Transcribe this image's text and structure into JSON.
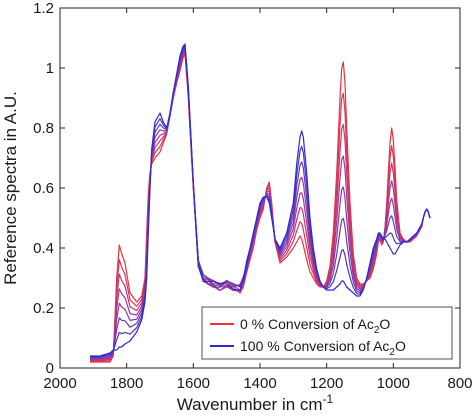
{
  "chart_data": {
    "type": "line",
    "xlabel_main": "Wavenumber  in  cm",
    "xlabel_sup": "-1",
    "ylabel": "Reference spectra  in  A.U.",
    "xlim": [
      2000,
      800
    ],
    "x_reversed": true,
    "ylim": [
      0,
      1.2
    ],
    "xticks": [
      2000,
      1800,
      1600,
      1400,
      1200,
      1000,
      800
    ],
    "yticks": [
      0,
      0.2,
      0.4,
      0.6,
      0.8,
      1,
      1.2
    ],
    "ytick_labels": [
      "0",
      "0.2",
      "0.4",
      "0.6",
      "0.8",
      "1",
      "1.2"
    ],
    "grid": false,
    "legend_position": "bottom-right",
    "legend": [
      {
        "prefix": "0 % Conversion of Ac",
        "sub": "2",
        "suffix": "O",
        "color": "#e8323c"
      },
      {
        "prefix": "100 % Conversion of Ac",
        "sub": "2",
        "suffix": "O",
        "color": "#2a2ad0"
      }
    ],
    "series_colors": [
      "#e8323c",
      "#d9345a",
      "#c23773",
      "#a8388c",
      "#8c3aa2",
      "#6b38b8",
      "#4a34c6",
      "#2a2ad0"
    ],
    "conversion_levels": [
      0,
      0.143,
      0.286,
      0.429,
      0.571,
      0.714,
      0.857,
      1
    ],
    "spectrum_start": {
      "x": [
        1910,
        1880,
        1850,
        1840,
        1830,
        1822,
        1815,
        1805,
        1790,
        1770,
        1755,
        1745,
        1740,
        1735,
        1730,
        1725,
        1715,
        1700,
        1690,
        1680,
        1670,
        1660,
        1650,
        1640,
        1632,
        1625,
        1615,
        1600,
        1585,
        1570,
        1555,
        1540,
        1520,
        1500,
        1480,
        1460,
        1450,
        1440,
        1430,
        1420,
        1410,
        1400,
        1390,
        1380,
        1372,
        1365,
        1355,
        1340,
        1320,
        1300,
        1290,
        1280,
        1275,
        1270,
        1260,
        1250,
        1240,
        1230,
        1220,
        1210,
        1200,
        1190,
        1180,
        1170,
        1160,
        1155,
        1150,
        1145,
        1140,
        1130,
        1120,
        1110,
        1100,
        1090,
        1080,
        1070,
        1060,
        1050,
        1045,
        1040,
        1035,
        1030,
        1025,
        1020,
        1015,
        1010,
        1005,
        1000,
        995,
        990,
        980,
        970,
        960,
        950,
        940,
        930,
        920,
        915,
        910,
        905,
        900,
        895,
        890
      ],
      "y": [
        0.02,
        0.02,
        0.02,
        0.04,
        0.3,
        0.41,
        0.38,
        0.35,
        0.25,
        0.22,
        0.24,
        0.3,
        0.45,
        0.58,
        0.65,
        0.68,
        0.7,
        0.72,
        0.75,
        0.78,
        0.84,
        0.9,
        0.95,
        0.99,
        1.03,
        1.05,
        0.9,
        0.6,
        0.35,
        0.3,
        0.29,
        0.28,
        0.27,
        0.28,
        0.27,
        0.26,
        0.28,
        0.32,
        0.36,
        0.4,
        0.46,
        0.5,
        0.53,
        0.6,
        0.62,
        0.55,
        0.42,
        0.35,
        0.37,
        0.4,
        0.42,
        0.44,
        0.43,
        0.41,
        0.36,
        0.32,
        0.3,
        0.28,
        0.27,
        0.27,
        0.29,
        0.34,
        0.45,
        0.65,
        0.9,
        1.0,
        1.02,
        0.95,
        0.8,
        0.55,
        0.38,
        0.3,
        0.28,
        0.28,
        0.29,
        0.3,
        0.33,
        0.38,
        0.42,
        0.43,
        0.41,
        0.42,
        0.47,
        0.55,
        0.65,
        0.75,
        0.8,
        0.76,
        0.67,
        0.56,
        0.45,
        0.43,
        0.42,
        0.42,
        0.43,
        0.44,
        0.46,
        0.47,
        0.5,
        0.52,
        0.53,
        0.52,
        0.5
      ]
    },
    "spectrum_end": {
      "x": [
        1910,
        1880,
        1850,
        1840,
        1830,
        1822,
        1815,
        1805,
        1790,
        1770,
        1755,
        1745,
        1740,
        1735,
        1730,
        1725,
        1715,
        1700,
        1690,
        1680,
        1670,
        1660,
        1650,
        1640,
        1632,
        1625,
        1615,
        1600,
        1585,
        1570,
        1555,
        1540,
        1520,
        1500,
        1480,
        1460,
        1450,
        1440,
        1430,
        1420,
        1410,
        1400,
        1390,
        1380,
        1372,
        1365,
        1355,
        1340,
        1320,
        1300,
        1290,
        1280,
        1275,
        1270,
        1260,
        1250,
        1240,
        1230,
        1220,
        1210,
        1200,
        1190,
        1180,
        1170,
        1160,
        1155,
        1150,
        1145,
        1140,
        1130,
        1120,
        1110,
        1100,
        1090,
        1080,
        1070,
        1060,
        1050,
        1045,
        1040,
        1035,
        1030,
        1025,
        1020,
        1015,
        1010,
        1005,
        1000,
        995,
        990,
        980,
        970,
        960,
        950,
        940,
        930,
        920,
        915,
        910,
        905,
        900,
        895,
        890
      ],
      "y": [
        0.04,
        0.04,
        0.05,
        0.06,
        0.06,
        0.07,
        0.07,
        0.08,
        0.09,
        0.12,
        0.16,
        0.22,
        0.3,
        0.45,
        0.6,
        0.73,
        0.82,
        0.85,
        0.82,
        0.8,
        0.85,
        0.92,
        0.98,
        1.04,
        1.07,
        1.08,
        0.94,
        0.62,
        0.35,
        0.3,
        0.29,
        0.28,
        0.27,
        0.28,
        0.27,
        0.27,
        0.3,
        0.35,
        0.4,
        0.45,
        0.5,
        0.55,
        0.57,
        0.57,
        0.55,
        0.5,
        0.43,
        0.4,
        0.45,
        0.55,
        0.68,
        0.77,
        0.79,
        0.77,
        0.65,
        0.5,
        0.4,
        0.33,
        0.29,
        0.27,
        0.26,
        0.26,
        0.26,
        0.27,
        0.28,
        0.29,
        0.29,
        0.28,
        0.27,
        0.26,
        0.25,
        0.24,
        0.24,
        0.26,
        0.3,
        0.35,
        0.4,
        0.43,
        0.45,
        0.45,
        0.44,
        0.43,
        0.43,
        0.42,
        0.41,
        0.4,
        0.39,
        0.38,
        0.38,
        0.39,
        0.41,
        0.42,
        0.42,
        0.43,
        0.44,
        0.45,
        0.47,
        0.48,
        0.5,
        0.52,
        0.53,
        0.52,
        0.5
      ]
    }
  }
}
